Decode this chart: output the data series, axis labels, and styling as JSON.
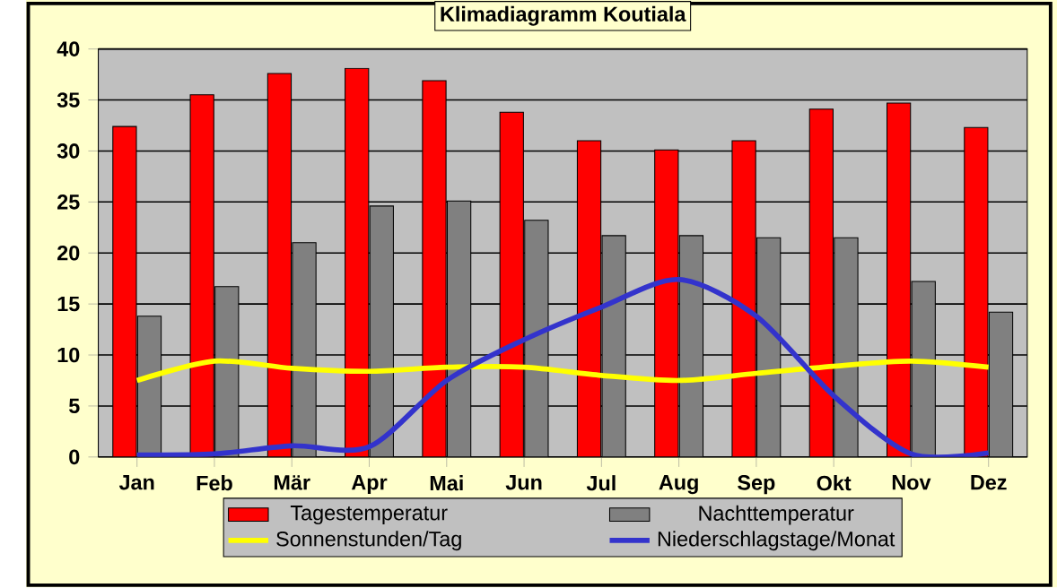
{
  "chart_data": {
    "type": "bar",
    "title": "Klimadiagramm Koutiala",
    "categories": [
      "Jan",
      "Feb",
      "Mär",
      "Apr",
      "Mai",
      "Jun",
      "Jul",
      "Aug",
      "Sep",
      "Okt",
      "Nov",
      "Dez"
    ],
    "series": [
      {
        "name": "Tagestemperatur",
        "color": "#ff0000",
        "values": [
          32.4,
          35.5,
          37.6,
          38.1,
          36.9,
          33.8,
          31.0,
          30.1,
          31.0,
          34.1,
          34.7,
          32.3
        ]
      },
      {
        "name": "Nachttemperatur",
        "color": "#808080",
        "values": [
          13.8,
          16.7,
          21.0,
          24.6,
          25.1,
          23.2,
          21.7,
          21.7,
          21.5,
          21.5,
          17.2,
          14.2
        ]
      },
      {
        "name": "Sonnenstunden/Tag",
        "type": "line",
        "color": "#ffff00",
        "values": [
          7.5,
          9.4,
          8.7,
          8.4,
          8.8,
          8.8,
          8.0,
          7.5,
          8.2,
          8.9,
          9.4,
          8.8
        ]
      },
      {
        "name": "Niederschlagstage/Monat",
        "type": "line",
        "color": "#3333cc",
        "values": [
          0.2,
          0.3,
          1.1,
          1.0,
          7.5,
          11.5,
          14.7,
          17.4,
          13.8,
          6.0,
          0.3,
          0.4
        ]
      }
    ],
    "ylim": [
      0,
      40
    ],
    "yticks": [
      0,
      5,
      10,
      15,
      20,
      25,
      30,
      35,
      40
    ],
    "grid": "y",
    "legend": "bottom"
  }
}
